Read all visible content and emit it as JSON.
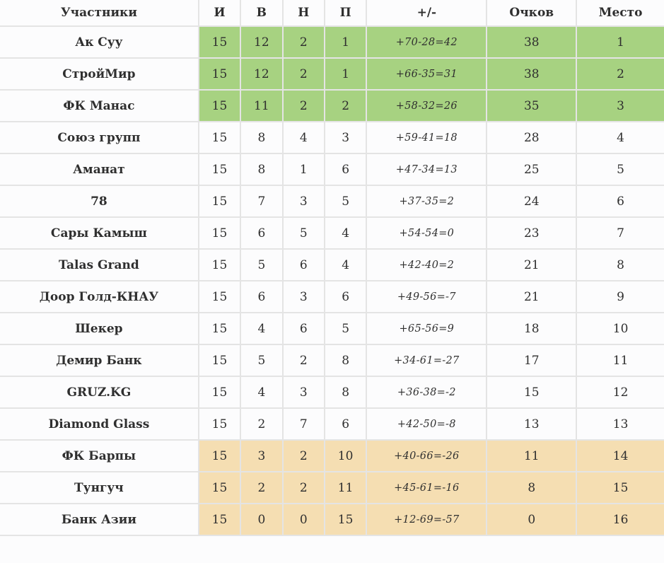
{
  "colors": {
    "green": "#a7d281",
    "orange": "#f5deb2",
    "border": "#e4e4e4",
    "text": "#2f2f2f",
    "rowbg": "#fcfcfd"
  },
  "table": {
    "columns": [
      {
        "key": "team",
        "label": "Участники"
      },
      {
        "key": "played",
        "label": "И"
      },
      {
        "key": "wins",
        "label": "В"
      },
      {
        "key": "draws",
        "label": "Н"
      },
      {
        "key": "losses",
        "label": "П"
      },
      {
        "key": "diff",
        "label": "+/-"
      },
      {
        "key": "points",
        "label": "Очков"
      },
      {
        "key": "place",
        "label": "Место"
      }
    ],
    "rows": [
      {
        "team": "Ак Суу",
        "played": "15",
        "wins": "12",
        "draws": "2",
        "losses": "1",
        "diff": "+70-28=42",
        "points": "38",
        "place": "1",
        "highlight": "green"
      },
      {
        "team": "СтройМир",
        "played": "15",
        "wins": "12",
        "draws": "2",
        "losses": "1",
        "diff": "+66-35=31",
        "points": "38",
        "place": "2",
        "highlight": "green"
      },
      {
        "team": "ФК Манас",
        "played": "15",
        "wins": "11",
        "draws": "2",
        "losses": "2",
        "diff": "+58-32=26",
        "points": "35",
        "place": "3",
        "highlight": "green"
      },
      {
        "team": "Союз групп",
        "played": "15",
        "wins": "8",
        "draws": "4",
        "losses": "3",
        "diff": "+59-41=18",
        "points": "28",
        "place": "4",
        "highlight": "none"
      },
      {
        "team": "Аманат",
        "played": "15",
        "wins": "8",
        "draws": "1",
        "losses": "6",
        "diff": "+47-34=13",
        "points": "25",
        "place": "5",
        "highlight": "none"
      },
      {
        "team": "78",
        "played": "15",
        "wins": "7",
        "draws": "3",
        "losses": "5",
        "diff": "+37-35=2",
        "points": "24",
        "place": "6",
        "highlight": "none"
      },
      {
        "team": "Сары Камыш",
        "played": "15",
        "wins": "6",
        "draws": "5",
        "losses": "4",
        "diff": "+54-54=0",
        "points": "23",
        "place": "7",
        "highlight": "none"
      },
      {
        "team": "Talas Grand",
        "played": "15",
        "wins": "5",
        "draws": "6",
        "losses": "4",
        "diff": "+42-40=2",
        "points": "21",
        "place": "8",
        "highlight": "none"
      },
      {
        "team": "Доор Голд-КНАУ",
        "played": "15",
        "wins": "6",
        "draws": "3",
        "losses": "6",
        "diff": "+49-56=-7",
        "points": "21",
        "place": "9",
        "highlight": "none"
      },
      {
        "team": "Шекер",
        "played": "15",
        "wins": "4",
        "draws": "6",
        "losses": "5",
        "diff": "+65-56=9",
        "points": "18",
        "place": "10",
        "highlight": "none"
      },
      {
        "team": "Демир Банк",
        "played": "15",
        "wins": "5",
        "draws": "2",
        "losses": "8",
        "diff": "+34-61=-27",
        "points": "17",
        "place": "11",
        "highlight": "none"
      },
      {
        "team": "GRUZ.KG",
        "played": "15",
        "wins": "4",
        "draws": "3",
        "losses": "8",
        "diff": "+36-38=-2",
        "points": "15",
        "place": "12",
        "highlight": "none"
      },
      {
        "team": "Diamond Glass",
        "played": "15",
        "wins": "2",
        "draws": "7",
        "losses": "6",
        "diff": "+42-50=-8",
        "points": "13",
        "place": "13",
        "highlight": "none"
      },
      {
        "team": "ФК Барпы",
        "played": "15",
        "wins": "3",
        "draws": "2",
        "losses": "10",
        "diff": "+40-66=-26",
        "points": "11",
        "place": "14",
        "highlight": "orange"
      },
      {
        "team": "Тунгуч",
        "played": "15",
        "wins": "2",
        "draws": "2",
        "losses": "11",
        "diff": "+45-61=-16",
        "points": "8",
        "place": "15",
        "highlight": "orange"
      },
      {
        "team": "Банк Азии",
        "played": "15",
        "wins": "0",
        "draws": "0",
        "losses": "15",
        "diff": "+12-69=-57",
        "points": "0",
        "place": "16",
        "highlight": "orange"
      }
    ]
  }
}
